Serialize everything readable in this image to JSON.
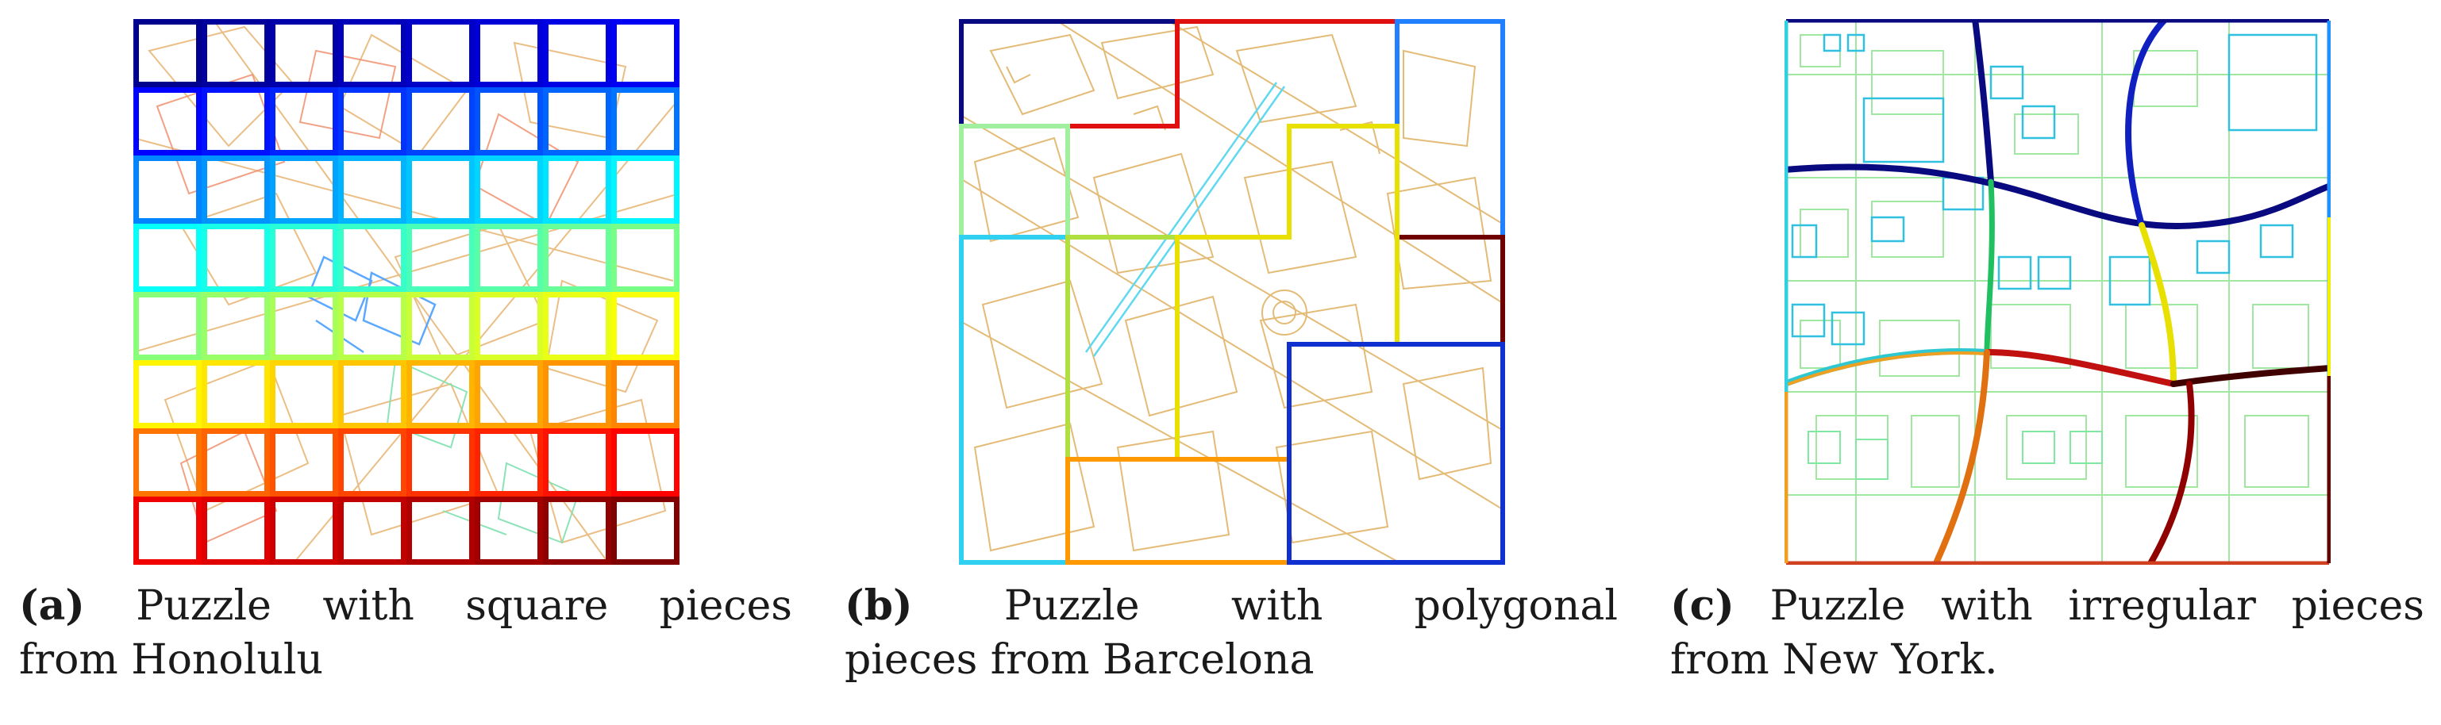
{
  "figure": {
    "panels": [
      {
        "id": "a",
        "tag": "(a)",
        "caption_words_line1": [
          "Puzzle",
          "with",
          "square",
          "pieces"
        ],
        "caption_line2": "from Honolulu",
        "style": "square-pieces"
      },
      {
        "id": "b",
        "tag": "(b)",
        "caption_words_line1": [
          "Puzzle",
          "with",
          "polygonal"
        ],
        "caption_line2": "pieces from Barcelona",
        "style": "polygonal-pieces"
      },
      {
        "id": "c",
        "tag": "(c)",
        "caption_words_line1": [
          "Puzzle",
          "with",
          "irregular",
          "pieces"
        ],
        "caption_line2": "from New York.",
        "style": "irregular-pieces"
      }
    ],
    "colors": {
      "map_lines_primary": "#e0b060",
      "map_lines_orange": "#f08060",
      "map_lines_green": "#90e0a0",
      "jet_colormap": [
        "#00008f",
        "#0000ff",
        "#0080ff",
        "#00ffff",
        "#80ff80",
        "#ffff00",
        "#ff8000",
        "#ff0000",
        "#800000"
      ]
    }
  }
}
